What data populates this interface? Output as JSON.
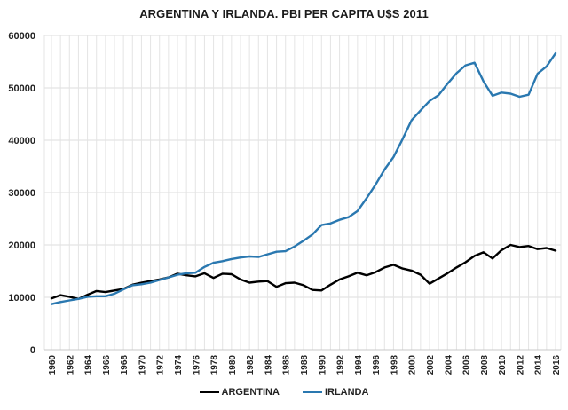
{
  "chart_data": {
    "type": "line",
    "title": "ARGENTINA  Y IRLANDA.  PBI PER CAPITA U$S 2011",
    "xlabel": "",
    "ylabel": "",
    "ylim": [
      0,
      60000
    ],
    "yticks": [
      0,
      10000,
      20000,
      30000,
      40000,
      50000,
      60000
    ],
    "xlim": [
      1960,
      2016
    ],
    "xtick_labels": [
      "1960",
      "1962",
      "1964",
      "1966",
      "1968",
      "1970",
      "1972",
      "1974",
      "1976",
      "1978",
      "1980",
      "1982",
      "1984",
      "1986",
      "1988",
      "1990",
      "1992",
      "1994",
      "1996",
      "1998",
      "2000",
      "2002",
      "2004",
      "2006",
      "2008",
      "2010",
      "2012",
      "2014",
      "2016"
    ],
    "grid": true,
    "legend_position": "bottom",
    "x": [
      1960,
      1961,
      1962,
      1963,
      1964,
      1965,
      1966,
      1967,
      1968,
      1969,
      1970,
      1971,
      1972,
      1973,
      1974,
      1975,
      1976,
      1977,
      1978,
      1979,
      1980,
      1981,
      1982,
      1983,
      1984,
      1985,
      1986,
      1987,
      1988,
      1989,
      1990,
      1991,
      1992,
      1993,
      1994,
      1995,
      1996,
      1997,
      1998,
      1999,
      2000,
      2001,
      2002,
      2003,
      2004,
      2005,
      2006,
      2007,
      2008,
      2009,
      2010,
      2011,
      2012,
      2013,
      2014,
      2015,
      2016
    ],
    "series": [
      {
        "name": "ARGENTINA",
        "color": "#000000",
        "values": [
          9800,
          10400,
          10100,
          9700,
          10500,
          11200,
          11000,
          11300,
          11600,
          12400,
          12800,
          13100,
          13400,
          13800,
          14500,
          14200,
          14000,
          14600,
          13700,
          14500,
          14400,
          13400,
          12800,
          13000,
          13100,
          12000,
          12700,
          12800,
          12300,
          11400,
          11300,
          12400,
          13400,
          14000,
          14700,
          14200,
          14800,
          15700,
          16200,
          15500,
          15100,
          14300,
          12600,
          13600,
          14600,
          15700,
          16700,
          17900,
          18600,
          17400,
          19000,
          20000,
          19600,
          19800,
          19200,
          19400,
          18900
        ]
      },
      {
        "name": "IRLANDA",
        "color": "#2a78b0",
        "values": [
          8700,
          9100,
          9400,
          9700,
          10100,
          10200,
          10200,
          10700,
          11500,
          12300,
          12500,
          12800,
          13300,
          13800,
          14300,
          14600,
          14700,
          15800,
          16600,
          16900,
          17300,
          17600,
          17800,
          17700,
          18200,
          18700,
          18800,
          19700,
          20800,
          22000,
          23800,
          24100,
          24800,
          25300,
          26500,
          28900,
          31500,
          34400,
          36800,
          40200,
          43800,
          45700,
          47500,
          48600,
          50800,
          52800,
          54300,
          54800,
          51200,
          48500,
          49100,
          48900,
          48300,
          48700,
          52700,
          54100,
          56600
        ]
      }
    ]
  }
}
